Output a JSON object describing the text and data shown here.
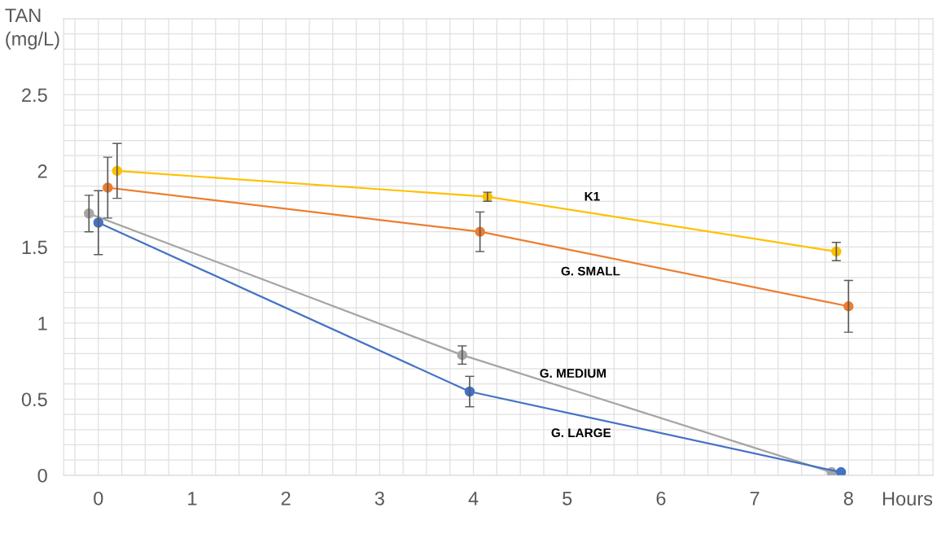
{
  "chart_data": {
    "type": "line",
    "xlabel": "Hours",
    "ylabel": "TAN\n(mg/L)",
    "xlim": [
      -0.37,
      8.9
    ],
    "ylim": [
      0,
      3
    ],
    "xticks": [
      0,
      1,
      2,
      3,
      4,
      5,
      6,
      7,
      8
    ],
    "yticks": [
      0,
      0.5,
      1,
      1.5,
      2,
      2.5
    ],
    "grid": true,
    "marker": "circle",
    "legend": false,
    "series": [
      {
        "name": "K1",
        "color": "#ffc000",
        "x": [
          0.2,
          4.15,
          7.87
        ],
        "values": [
          2.0,
          1.83,
          1.47
        ],
        "errors": [
          0.18,
          0.03,
          0.06
        ]
      },
      {
        "name": "G. SMALL",
        "color": "#ed7d31",
        "x": [
          0.1,
          4.07,
          8.0
        ],
        "values": [
          1.89,
          1.6,
          1.11
        ],
        "errors": [
          0.2,
          0.13,
          0.17
        ]
      },
      {
        "name": "G. MEDIUM",
        "color": "#a5a5a5",
        "x": [
          -0.1,
          3.88,
          7.82
        ],
        "values": [
          1.72,
          0.79,
          0.02
        ],
        "errors": [
          0.12,
          0.06,
          null
        ]
      },
      {
        "name": "G. LARGE",
        "color": "#4472c4",
        "x": [
          0.0,
          3.96,
          7.92
        ],
        "values": [
          1.66,
          0.55,
          0.02
        ],
        "errors": [
          0.21,
          0.1,
          null
        ]
      }
    ]
  }
}
